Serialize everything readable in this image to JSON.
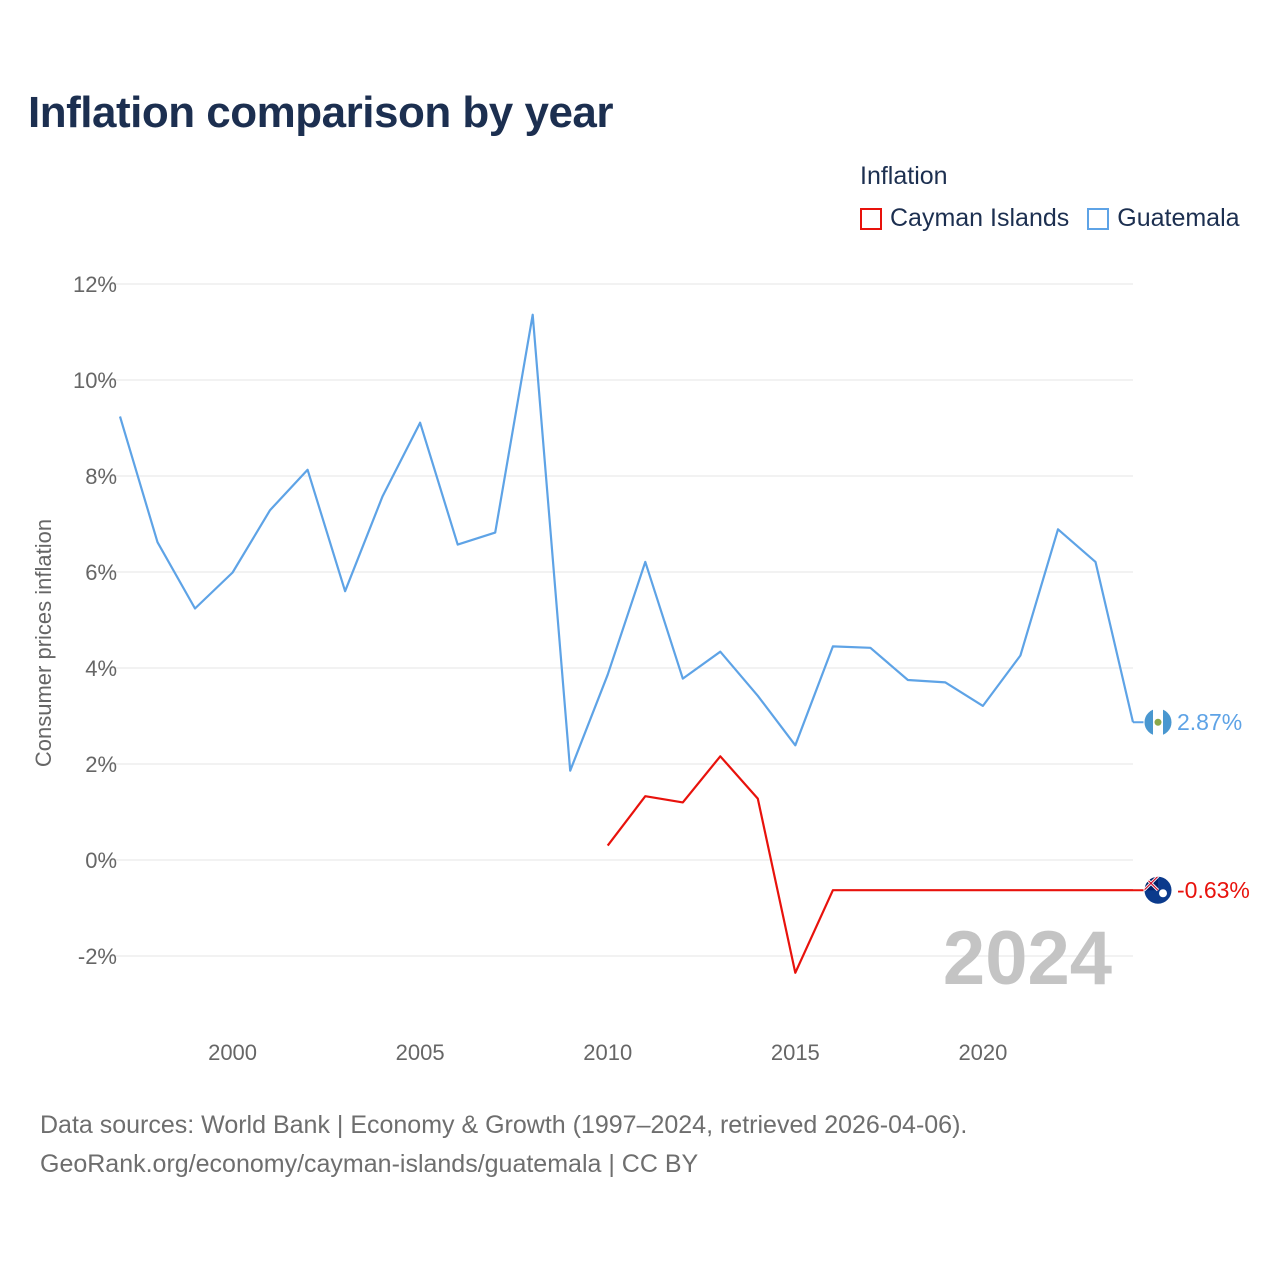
{
  "title": "Inflation comparison by year",
  "legend": {
    "title": "Inflation",
    "items": [
      {
        "name": "Cayman Islands",
        "color": "#e8120c"
      },
      {
        "name": "Guatemala",
        "color": "#5ea3e6"
      }
    ]
  },
  "year_watermark": "2024",
  "footer": {
    "line1": "Data sources: World Bank | Economy & Growth (1997–2024, retrieved 2026-04-06).",
    "line2": "GeoRank.org/economy/cayman-islands/guatemala | CC BY"
  },
  "chart_data": {
    "type": "line",
    "title": "Inflation comparison by year",
    "xlabel": "",
    "ylabel": "Consumer prices inflation",
    "xlim": [
      1997,
      2024
    ],
    "ylim": [
      -3.5,
      12
    ],
    "yticks": [
      -2,
      0,
      2,
      4,
      6,
      8,
      10,
      12
    ],
    "ytick_labels": [
      "-2%",
      "0%",
      "2%",
      "4%",
      "6%",
      "8%",
      "10%",
      "12%"
    ],
    "xticks": [
      2000,
      2005,
      2010,
      2015,
      2020
    ],
    "xtick_labels": [
      "2000",
      "2005",
      "2010",
      "2015",
      "2020"
    ],
    "grid": true,
    "series": [
      {
        "name": "Guatemala",
        "color": "#5ea3e6",
        "end_label": "2.87%",
        "x": [
          1997,
          1998,
          1999,
          2000,
          2001,
          2002,
          2003,
          2004,
          2005,
          2006,
          2007,
          2008,
          2009,
          2010,
          2011,
          2012,
          2013,
          2014,
          2015,
          2016,
          2017,
          2018,
          2019,
          2020,
          2021,
          2022,
          2023,
          2024
        ],
        "values": [
          9.24,
          6.62,
          5.24,
          5.99,
          7.29,
          8.13,
          5.6,
          7.58,
          9.11,
          6.57,
          6.82,
          11.36,
          1.86,
          3.86,
          6.21,
          3.78,
          4.34,
          3.42,
          2.39,
          4.45,
          4.42,
          3.75,
          3.7,
          3.21,
          4.26,
          6.89,
          6.21,
          2.87
        ]
      },
      {
        "name": "Cayman Islands",
        "color": "#e8120c",
        "end_label": "-0.63%",
        "x": [
          2010,
          2011,
          2012,
          2013,
          2014,
          2015,
          2016,
          2017,
          2018,
          2019,
          2020,
          2021,
          2022,
          2023,
          2024
        ],
        "values": [
          0.3,
          1.33,
          1.2,
          2.16,
          1.28,
          -2.35,
          -0.63,
          -0.63,
          -0.63,
          -0.63,
          -0.63,
          -0.63,
          -0.63,
          -0.63,
          -0.63
        ]
      }
    ]
  }
}
